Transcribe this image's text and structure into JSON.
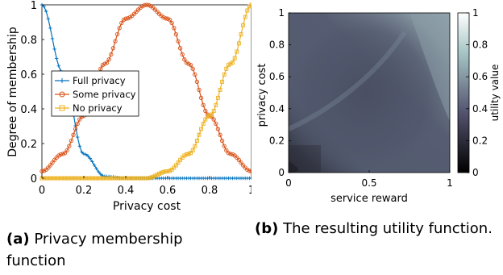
{
  "chart_data": [
    {
      "type": "line",
      "xlabel": "Privacy cost",
      "ylabel": "Degree of membership",
      "xlim": [
        0,
        1
      ],
      "ylim": [
        0,
        1
      ],
      "xticks": [
        "0",
        "0.2",
        "0.4",
        "0.6",
        "0.8",
        "1"
      ],
      "yticks": [
        "0",
        "0.2",
        "0.4",
        "0.6",
        "0.8",
        "1"
      ],
      "legend_position": "center-left",
      "x": [
        0,
        0.1,
        0.2,
        0.3,
        0.4,
        0.5,
        0.6,
        0.7,
        0.8,
        0.9,
        1.0
      ],
      "series": [
        {
          "name": "Full privacy",
          "color": "#0072BD",
          "marker": "asterisk",
          "values": [
            1.0,
            0.61,
            0.14,
            0.011,
            0.0003,
            0.0,
            0.0,
            0.0,
            0.0,
            0.0,
            0.0
          ]
        },
        {
          "name": "Some privacy",
          "color": "#D95319",
          "marker": "circle",
          "values": [
            0.04,
            0.14,
            0.36,
            0.66,
            0.92,
            1.0,
            0.92,
            0.66,
            0.36,
            0.14,
            0.04
          ]
        },
        {
          "name": "No privacy",
          "color": "#EDB120",
          "marker": "square",
          "values": [
            0.0,
            0.0,
            0.0,
            0.0,
            0.0,
            0.0,
            0.04,
            0.14,
            0.36,
            0.66,
            1.0
          ]
        }
      ]
    },
    {
      "type": "heatmap",
      "xlabel": "service reward",
      "ylabel": "privacy cost",
      "xlim": [
        0,
        1
      ],
      "ylim": [
        0,
        1
      ],
      "xticks": [
        "0",
        "0.5",
        "1"
      ],
      "yticks": [
        "0",
        "0.2",
        "0.4",
        "0.6",
        "0.8",
        "1"
      ],
      "colorbar_label": "utility value",
      "colorbar_ticks": [
        "0",
        "0.2",
        "0.4",
        "0.6",
        "0.8",
        "1"
      ],
      "colormap": "bone",
      "value_range": [
        0,
        1
      ]
    }
  ],
  "captions": {
    "a_tag": "(a)",
    "a_text": "Privacy membership function",
    "b_tag": "(b)",
    "b_text": "The resulting utility function."
  }
}
